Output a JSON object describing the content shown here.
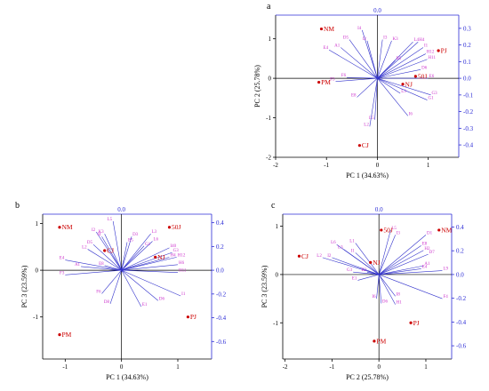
{
  "colors": {
    "scores": "#cc0000",
    "loadings": "#3333cc",
    "loading_labels": "#cc33cc",
    "secondary_axes": "#2b2bd6"
  },
  "chart_data": [
    {
      "type": "scatter",
      "panel": "a",
      "title": "a",
      "xlabel": "PC 1 (34.63%)",
      "ylabel": "PC 2 (25.78%)",
      "xlim": [
        -2,
        1.6
      ],
      "ylim": [
        -2,
        1.6
      ],
      "xticks": [
        -2,
        -1,
        0,
        1
      ],
      "yticks": [
        -2,
        -1,
        0,
        1
      ],
      "top_axis_label": "0.0",
      "right_ticks": [
        0.3,
        0.2,
        0.1,
        0.0,
        -0.1,
        -0.2,
        -0.3,
        -0.4
      ],
      "scores": [
        {
          "label": "NM",
          "x": -1.1,
          "y": 1.25
        },
        {
          "label": "PJ",
          "x": 1.2,
          "y": 0.7
        },
        {
          "label": "50J",
          "x": 0.75,
          "y": 0.05
        },
        {
          "label": "PM",
          "x": -1.15,
          "y": -0.1
        },
        {
          "label": "NJ",
          "x": 0.5,
          "y": -0.15
        },
        {
          "label": "CJ",
          "x": -0.35,
          "y": -1.7
        }
      ],
      "loadings": [
        {
          "label": "A1",
          "x": -0.72,
          "y": 0.78
        },
        {
          "label": "E4",
          "x": -0.95,
          "y": 0.72
        },
        {
          "label": "D5",
          "x": -0.55,
          "y": 0.98
        },
        {
          "label": "I4",
          "x": -0.3,
          "y": 1.22
        },
        {
          "label": "I2",
          "x": -0.2,
          "y": 0.95
        },
        {
          "label": "I3",
          "x": 0.1,
          "y": 0.98
        },
        {
          "label": "K3",
          "x": 0.28,
          "y": 0.95
        },
        {
          "label": "L4",
          "x": 0.7,
          "y": 0.92
        },
        {
          "label": "H4",
          "x": 0.8,
          "y": 0.92
        },
        {
          "label": "I1",
          "x": 0.9,
          "y": 0.78
        },
        {
          "label": "H12",
          "x": 0.95,
          "y": 0.62
        },
        {
          "label": "H11",
          "x": 0.98,
          "y": 0.48
        },
        {
          "label": "B5",
          "x": 0.35,
          "y": 0.45
        },
        {
          "label": "D6",
          "x": 0.85,
          "y": 0.22
        },
        {
          "label": "E6",
          "x": 1.0,
          "y": 0.0
        },
        {
          "label": "F3",
          "x": -0.82,
          "y": -0.08
        },
        {
          "label": "F6",
          "x": -0.6,
          "y": 0.02
        },
        {
          "label": "E8",
          "x": -0.4,
          "y": -0.48
        },
        {
          "label": "L3",
          "x": 0.45,
          "y": -0.38
        },
        {
          "label": "G3",
          "x": 1.05,
          "y": -0.42
        },
        {
          "label": "G1",
          "x": 0.98,
          "y": -0.55
        },
        {
          "label": "I6",
          "x": 0.6,
          "y": -0.95
        },
        {
          "label": "L5",
          "x": -0.05,
          "y": -1.05
        },
        {
          "label": "L2",
          "x": -0.15,
          "y": -1.22
        }
      ]
    },
    {
      "type": "scatter",
      "panel": "b",
      "title": "b",
      "xlabel": "PC 1 (34.63%)",
      "ylabel": "PC 3 (23.59%)",
      "xlim": [
        -1.4,
        1.6
      ],
      "ylim": [
        -1.9,
        1.2
      ],
      "xticks": [
        -1,
        0,
        1
      ],
      "yticks": [
        -1,
        0,
        1
      ],
      "top_axis_label": "0.0",
      "right_ticks": [
        0.4,
        0.2,
        0.0,
        -0.2,
        -0.4,
        -0.6
      ],
      "scores": [
        {
          "label": "NM",
          "x": -1.1,
          "y": 0.92
        },
        {
          "label": "50J",
          "x": 0.85,
          "y": 0.92
        },
        {
          "label": "CJ",
          "x": -0.3,
          "y": 0.42
        },
        {
          "label": "NJ",
          "x": 0.6,
          "y": 0.28
        },
        {
          "label": "PJ",
          "x": 1.18,
          "y": -1.0
        },
        {
          "label": "PM",
          "x": -1.1,
          "y": -1.38
        }
      ],
      "loadings": [
        {
          "label": "L5",
          "x": -0.15,
          "y": 1.05
        },
        {
          "label": "I2",
          "x": -0.45,
          "y": 0.82
        },
        {
          "label": "K3",
          "x": -0.3,
          "y": 0.78
        },
        {
          "label": "I4",
          "x": -0.35,
          "y": 0.72
        },
        {
          "label": "D3",
          "x": 0.18,
          "y": 0.72
        },
        {
          "label": "L3",
          "x": 0.52,
          "y": 0.78
        },
        {
          "label": "L6",
          "x": 0.55,
          "y": 0.62
        },
        {
          "label": "D5",
          "x": -0.5,
          "y": 0.55
        },
        {
          "label": "L2",
          "x": -0.6,
          "y": 0.45
        },
        {
          "label": "B5",
          "x": 0.1,
          "y": 0.6
        },
        {
          "label": "G1",
          "x": 0.4,
          "y": 0.52
        },
        {
          "label": "I40",
          "x": 0.85,
          "y": 0.48
        },
        {
          "label": "G3",
          "x": 0.9,
          "y": 0.38
        },
        {
          "label": "H12",
          "x": 0.98,
          "y": 0.28
        },
        {
          "label": "H4",
          "x": 0.85,
          "y": 0.28
        },
        {
          "label": "H6",
          "x": 1.0,
          "y": 0.12
        },
        {
          "label": "H11",
          "x": 1.0,
          "y": -0.05
        },
        {
          "label": "E4",
          "x": -1.0,
          "y": 0.22
        },
        {
          "label": "A1",
          "x": -0.72,
          "y": 0.08
        },
        {
          "label": "E8",
          "x": -0.3,
          "y": 0.1
        },
        {
          "label": "F3",
          "x": -1.0,
          "y": -0.1
        },
        {
          "label": "F6",
          "x": -0.35,
          "y": -0.5
        },
        {
          "label": "D8",
          "x": -0.2,
          "y": -0.72
        },
        {
          "label": "E1",
          "x": 0.35,
          "y": -0.78
        },
        {
          "label": "D6",
          "x": 0.65,
          "y": -0.65
        },
        {
          "label": "I1",
          "x": 1.05,
          "y": -0.55
        }
      ]
    },
    {
      "type": "scatter",
      "panel": "c",
      "title": "c",
      "xlabel": "PC 2 (25.78%)",
      "ylabel": "PC 3 (23.59%)",
      "xlim": [
        -2.05,
        1.55
      ],
      "ylim": [
        -1.75,
        1.25
      ],
      "xticks": [
        -2,
        -1,
        0,
        1
      ],
      "yticks": [
        -1,
        0,
        1
      ],
      "top_axis_label": "0.0",
      "right_ticks": [
        0.4,
        0.2,
        0.0,
        -0.2,
        -0.4,
        -0.6
      ],
      "scores": [
        {
          "label": "CJ",
          "x": -1.7,
          "y": 0.38
        },
        {
          "label": "50J",
          "x": 0.05,
          "y": 0.92
        },
        {
          "label": "NM",
          "x": 1.28,
          "y": 0.92
        },
        {
          "label": "NJ",
          "x": -0.18,
          "y": 0.25
        },
        {
          "label": "PJ",
          "x": 0.68,
          "y": -1.0
        },
        {
          "label": "PM",
          "x": -0.1,
          "y": -1.38
        }
      ],
      "loadings": [
        {
          "label": "L6",
          "x": -0.9,
          "y": 0.62
        },
        {
          "label": "L3",
          "x": -0.75,
          "y": 0.52
        },
        {
          "label": "L1",
          "x": -0.5,
          "y": 0.65
        },
        {
          "label": "L2",
          "x": -1.2,
          "y": 0.35
        },
        {
          "label": "I2",
          "x": -1.0,
          "y": 0.35
        },
        {
          "label": "I1",
          "x": -0.5,
          "y": 0.45
        },
        {
          "label": "G3",
          "x": -0.55,
          "y": 0.05
        },
        {
          "label": "E1",
          "x": -0.45,
          "y": -0.12
        },
        {
          "label": "E2",
          "x": -0.25,
          "y": 0.05
        },
        {
          "label": "L5",
          "x": 0.25,
          "y": 0.92
        },
        {
          "label": "I3",
          "x": 0.35,
          "y": 0.82
        },
        {
          "label": "D1",
          "x": 1.0,
          "y": 0.82
        },
        {
          "label": "E8",
          "x": 0.9,
          "y": 0.6
        },
        {
          "label": "H2",
          "x": 0.95,
          "y": 0.5
        },
        {
          "label": "D7",
          "x": 1.05,
          "y": 0.42
        },
        {
          "label": "A1",
          "x": 0.95,
          "y": 0.18
        },
        {
          "label": "E4",
          "x": 0.9,
          "y": 0.12
        },
        {
          "label": "L9",
          "x": 1.35,
          "y": 0.08
        },
        {
          "label": "I6",
          "x": -0.05,
          "y": -0.5
        },
        {
          "label": "I8",
          "x": 0.35,
          "y": -0.45
        },
        {
          "label": "D6",
          "x": 0.05,
          "y": -0.6
        },
        {
          "label": "H1",
          "x": 0.35,
          "y": -0.62
        },
        {
          "label": "F4",
          "x": 1.35,
          "y": -0.5
        }
      ]
    }
  ]
}
